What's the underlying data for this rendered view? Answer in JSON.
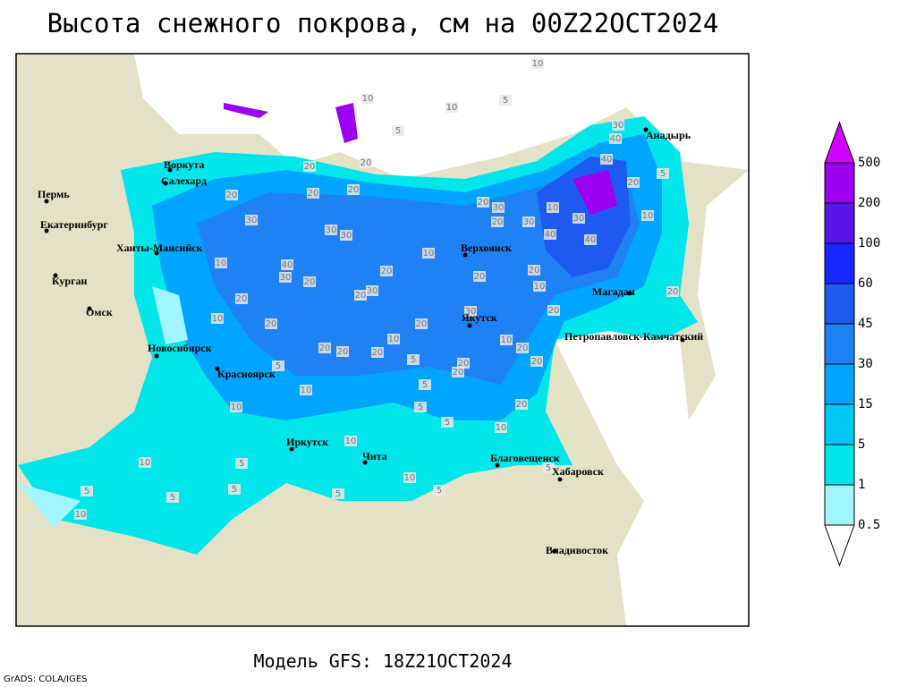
{
  "title": "Высота снежного покрова, см на 00Z22OCT2024",
  "footer": "Модель GFS: 18Z21OCT2024",
  "credit": "GrADS: COLA/IGES",
  "cities": [
    "Воркута",
    "Салехард",
    "Пермь",
    "Екатеринбург",
    "Ханты-Мансийск",
    "Курган",
    "Омск",
    "Новосибирск",
    "Красноярск",
    "Иркутск",
    "Чита",
    "Верхоянск",
    "Якутск",
    "Магадан",
    "Анадырь",
    "Петропавловск-Камчатский",
    "Благовещенск",
    "Хабаровск",
    "Владивосток"
  ],
  "contour_labels": [
    10,
    10,
    10,
    5,
    5,
    30,
    40,
    40,
    5,
    20,
    20,
    20,
    20,
    20,
    20,
    30,
    30,
    30,
    20,
    30,
    20,
    30,
    10,
    30,
    40,
    40,
    10,
    10,
    40,
    30,
    20,
    20,
    30,
    20,
    10,
    20,
    20,
    10,
    20,
    20,
    10,
    20,
    20,
    30,
    20,
    20,
    20,
    20,
    10,
    10,
    20,
    20,
    5,
    10,
    5,
    20,
    20,
    5,
    5,
    5,
    20,
    10,
    10,
    10,
    10,
    5,
    5,
    5,
    10,
    5,
    5,
    5,
    10,
    5
  ],
  "colorbar": {
    "levels": [
      0.5,
      1,
      5,
      15,
      30,
      45,
      60,
      100,
      200,
      500
    ],
    "colors": [
      "#ffffff",
      "#a0f5ff",
      "#00e6eb",
      "#00c8f5",
      "#00a5ff",
      "#1e82f5",
      "#1e5af0",
      "#1428ff",
      "#5a14e6",
      "#9b00f0",
      "#d200ff"
    ]
  }
}
